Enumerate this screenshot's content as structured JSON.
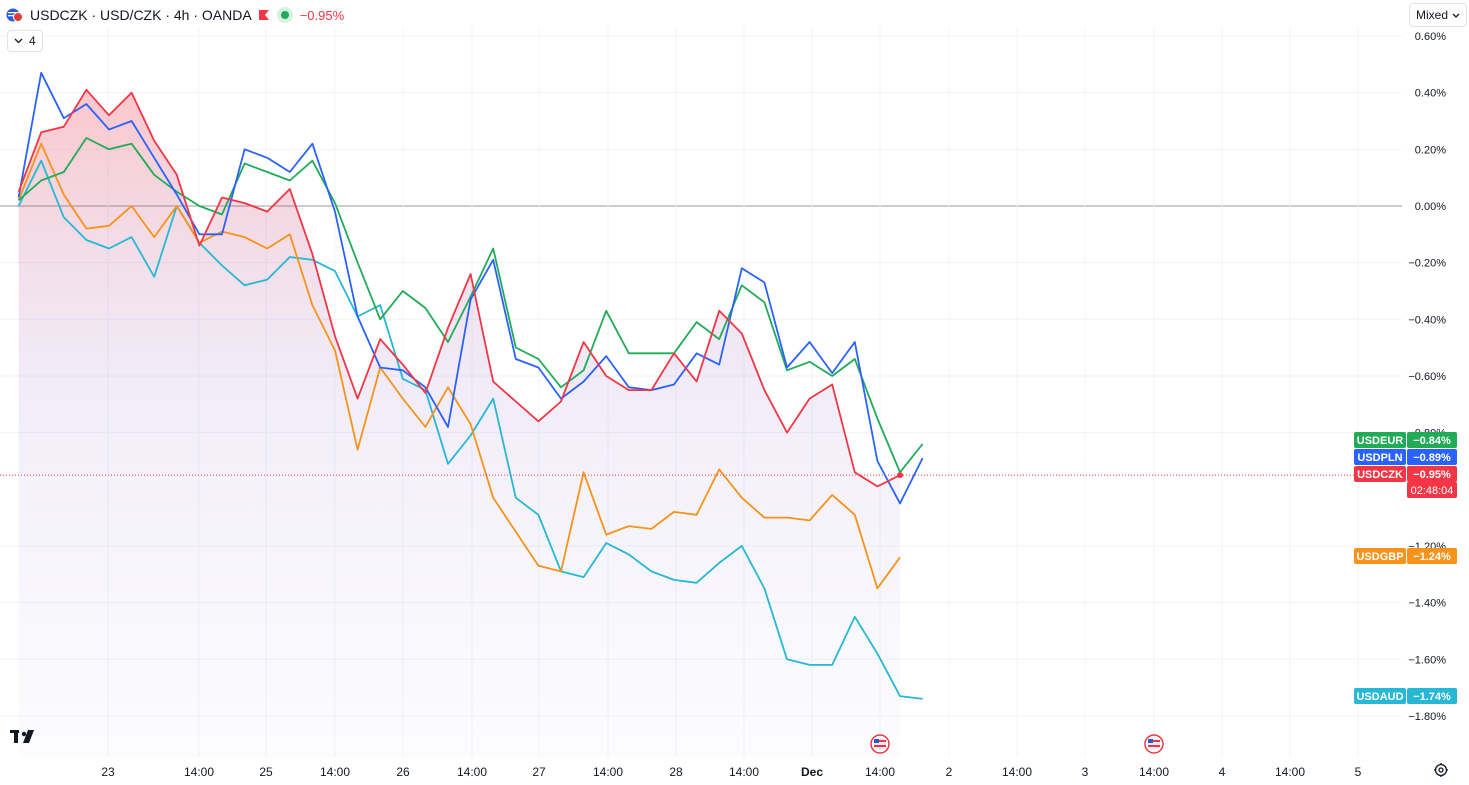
{
  "header": {
    "symbol_line": "USDCZK · USD/CZK · 4h · OANDA",
    "change": "−0.95%",
    "indicator_count": "4"
  },
  "scale_mode": "Mixed",
  "chart_data": {
    "type": "line",
    "title": "",
    "y_unit": "%",
    "ylim": [
      -1.8,
      0.6
    ],
    "y_ticks": [
      "0.60%",
      "0.40%",
      "0.20%",
      "0.00%",
      "−0.20%",
      "−0.40%",
      "−0.60%",
      "−0.80%",
      "−1.20%",
      "−1.40%",
      "−1.60%",
      "−1.80%"
    ],
    "x_ticks": [
      "23",
      "14:00",
      "25",
      "14:00",
      "26",
      "14:00",
      "27",
      "14:00",
      "28",
      "14:00",
      "Dec",
      "14:00",
      "2",
      "14:00",
      "3",
      "14:00",
      "4",
      "14:00",
      "5"
    ],
    "grid": true,
    "zero_line": 0,
    "main_series": "USDCZK",
    "countdown": "02:48:04",
    "series": [
      {
        "name": "USDEUR",
        "color": "#22ab57",
        "label": "−0.84%",
        "values": [
          0.02,
          0.09,
          0.12,
          0.24,
          0.2,
          0.22,
          0.11,
          0.05,
          0.0,
          -0.03,
          0.15,
          0.12,
          0.09,
          0.16,
          0.01,
          -0.2,
          -0.4,
          -0.3,
          -0.36,
          -0.48,
          -0.32,
          -0.15,
          -0.5,
          -0.54,
          -0.64,
          -0.58,
          -0.37,
          -0.52,
          -0.52,
          -0.52,
          -0.41,
          -0.47,
          -0.28,
          -0.34,
          -0.58,
          -0.55,
          -0.6,
          -0.54,
          -0.75,
          -0.94,
          -0.84
        ]
      },
      {
        "name": "USDPLN",
        "color": "#2962ff",
        "label": "−0.89%",
        "values": [
          0.03,
          0.47,
          0.31,
          0.36,
          0.27,
          0.3,
          0.17,
          0.04,
          -0.1,
          -0.1,
          0.2,
          0.17,
          0.12,
          0.22,
          -0.02,
          -0.39,
          -0.57,
          -0.58,
          -0.64,
          -0.78,
          -0.33,
          -0.19,
          -0.54,
          -0.57,
          -0.68,
          -0.62,
          -0.53,
          -0.64,
          -0.65,
          -0.63,
          -0.52,
          -0.56,
          -0.22,
          -0.27,
          -0.57,
          -0.48,
          -0.59,
          -0.48,
          -0.9,
          -1.05,
          -0.89
        ]
      },
      {
        "name": "USDCZK",
        "color": "#f23645",
        "label": "−0.95%",
        "values": [
          0.05,
          0.26,
          0.28,
          0.41,
          0.32,
          0.4,
          0.23,
          0.11,
          -0.14,
          0.03,
          0.01,
          -0.02,
          0.06,
          -0.17,
          -0.46,
          -0.68,
          -0.47,
          -0.56,
          -0.66,
          -0.43,
          -0.24,
          -0.62,
          -0.69,
          -0.76,
          -0.69,
          -0.48,
          -0.6,
          -0.65,
          -0.65,
          -0.52,
          -0.62,
          -0.37,
          -0.45,
          -0.65,
          -0.8,
          -0.68,
          -0.63,
          -0.94,
          -0.99,
          -0.95
        ]
      },
      {
        "name": "USDGBP",
        "color": "#f7931a",
        "label": "−1.24%",
        "values": [
          0.02,
          0.22,
          0.04,
          -0.08,
          -0.07,
          0.0,
          -0.11,
          0.0,
          -0.13,
          -0.09,
          -0.11,
          -0.15,
          -0.1,
          -0.35,
          -0.51,
          -0.86,
          -0.57,
          -0.68,
          -0.78,
          -0.64,
          -0.77,
          -1.03,
          -1.15,
          -1.27,
          -1.29,
          -0.94,
          -1.16,
          -1.13,
          -1.14,
          -1.08,
          -1.09,
          -0.93,
          -1.03,
          -1.1,
          -1.1,
          -1.11,
          -1.02,
          -1.09,
          -1.35,
          -1.24
        ]
      },
      {
        "name": "USDAUD",
        "color": "#26b8d4",
        "label": "−1.74%",
        "values": [
          0.0,
          0.16,
          -0.04,
          -0.12,
          -0.15,
          -0.11,
          -0.25,
          0.0,
          -0.13,
          -0.21,
          -0.28,
          -0.26,
          -0.18,
          -0.19,
          -0.23,
          -0.39,
          -0.35,
          -0.61,
          -0.65,
          -0.91,
          -0.81,
          -0.68,
          -1.03,
          -1.09,
          -1.29,
          -1.31,
          -1.19,
          -1.23,
          -1.29,
          -1.32,
          -1.33,
          -1.26,
          -1.2,
          -1.35,
          -1.6,
          -1.62,
          -1.62,
          -1.45,
          -1.58,
          -1.73,
          -1.74
        ]
      }
    ]
  }
}
